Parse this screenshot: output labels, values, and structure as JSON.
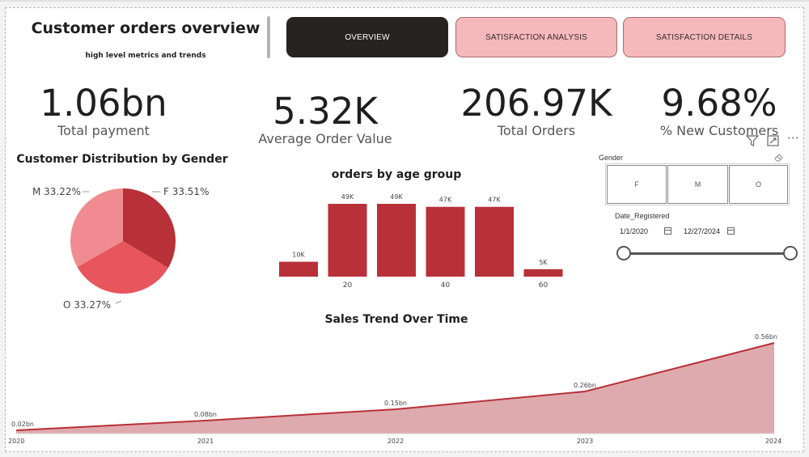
{
  "header": {
    "title": "Customer orders overview",
    "subtitle": "high level metrics and trends"
  },
  "nav": {
    "overview": "OVERVIEW",
    "satisfaction_analysis": "SATISFACTION ANALYSIS",
    "satisfaction_details": "SATISFACTION DETAILS"
  },
  "kpis": {
    "total_payment": {
      "value": "1.06bn",
      "label": "Total payment"
    },
    "avg_order_value": {
      "value": "5.32K",
      "label": "Average Order Value"
    },
    "total_orders": {
      "value": "206.97K",
      "label": "Total Orders"
    },
    "new_customers": {
      "value": "9.68%",
      "label": "% New Customers"
    }
  },
  "slicers": {
    "gender": {
      "title": "Gender",
      "options": [
        "F",
        "M",
        "O"
      ]
    },
    "date": {
      "title": "Date_Registered",
      "start": "1/1/2020",
      "end": "12/27/2024"
    }
  },
  "icons": {
    "filter": "filter-icon",
    "focus": "expand-icon",
    "more": "more-options-icon",
    "eraser": "eraser-icon",
    "calendar": "calendar-icon"
  },
  "chart_data": [
    {
      "type": "pie",
      "title": "Customer Distribution by Gender",
      "categories": [
        "F",
        "O",
        "M"
      ],
      "values": [
        33.51,
        33.27,
        33.22
      ],
      "labels": [
        "F 33.51%",
        "O 33.27%",
        "M 33.22%"
      ],
      "colors": [
        "#b83038",
        "#e8555d",
        "#f08c91"
      ]
    },
    {
      "type": "bar",
      "title": "orders by age group",
      "categories": [
        10,
        20,
        30,
        40,
        50,
        60
      ],
      "values": [
        10,
        49,
        49,
        47,
        47,
        5
      ],
      "data_labels": [
        "10K",
        "49K",
        "49K",
        "47K",
        "47K",
        "5K"
      ],
      "x_ticks": [
        "20",
        "40",
        "60"
      ],
      "color": "#b83038"
    },
    {
      "type": "area",
      "title": "Sales Trend Over Time",
      "x": [
        "2020",
        "2021",
        "2022",
        "2023",
        "2024"
      ],
      "values": [
        0.02,
        0.08,
        0.15,
        0.26,
        0.56
      ],
      "data_labels": [
        "0.02bn",
        "0.08bn",
        "0.15bn",
        "0.26bn",
        "0.56bn"
      ],
      "line_color": "#b83038",
      "fill_color": "#deaaae"
    }
  ]
}
